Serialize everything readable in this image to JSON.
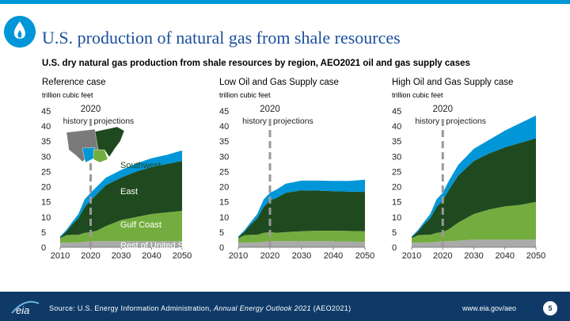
{
  "header": {
    "title": "U.S. production of natural gas from shale resources",
    "subtitle": "U.S. dry natural gas production from shale resources by region, AEO2021 oil and gas supply cases"
  },
  "footer": {
    "source_prefix": "Source: U.S. Energy Information Administration, ",
    "source_title": "Annual Energy Outlook 2021",
    "source_suffix": " (AEO2021)",
    "url": "www.eia.gov/aeo",
    "page_number": "5"
  },
  "colors": {
    "brand_blue": "#0096d7",
    "footer_navy": "#0f3a68",
    "title_blue": "#1b4f9c",
    "rest_of_us": "#aaaaaa",
    "gulf_coast": "#74ad3f",
    "east": "#1f4a1f",
    "southwest": "#0096d7"
  },
  "chart_data": [
    {
      "type": "area",
      "title": "Reference case",
      "unit": "trillion cubic feet",
      "x_ticks": [
        "2010",
        "2020",
        "2030",
        "2040",
        "2050"
      ],
      "y_ticks": [
        "0",
        "5",
        "10",
        "15",
        "20",
        "25",
        "30",
        "35",
        "40",
        "45"
      ],
      "xlim": [
        2010,
        2050
      ],
      "ylim": [
        0,
        45
      ],
      "annotation_year": "2020",
      "history_label": "history",
      "projections_label": "projections",
      "stacked": true,
      "x": [
        2010,
        2012,
        2014,
        2016,
        2018,
        2020,
        2022,
        2025,
        2030,
        2035,
        2040,
        2045,
        2050
      ],
      "series": [
        {
          "name": "Rest of United States",
          "values": [
            1.5,
            1.5,
            1.6,
            1.6,
            1.8,
            2.0,
            2.0,
            2.0,
            2.0,
            2.0,
            2.0,
            2.0,
            2.0
          ]
        },
        {
          "name": "Gulf Coast",
          "values": [
            1.5,
            2.5,
            2.5,
            2.5,
            3.0,
            3.0,
            3.5,
            5.0,
            7.0,
            8.0,
            9.0,
            9.5,
            10.0
          ]
        },
        {
          "name": "East",
          "values": [
            0.3,
            1.2,
            3.5,
            5.5,
            8.5,
            10.5,
            12.0,
            13.5,
            14.0,
            15.0,
            15.5,
            16.0,
            16.5
          ]
        },
        {
          "name": "Southwest",
          "values": [
            0.3,
            0.5,
            0.8,
            1.4,
            2.5,
            2.5,
            2.5,
            2.5,
            2.5,
            2.7,
            2.9,
            3.0,
            3.5
          ]
        }
      ]
    },
    {
      "type": "area",
      "title": "Low Oil and Gas Supply case",
      "unit": "trillion cubic feet",
      "x_ticks": [
        "2010",
        "2020",
        "2030",
        "2040",
        "2050"
      ],
      "y_ticks": [
        "0",
        "5",
        "10",
        "15",
        "20",
        "25",
        "30",
        "35",
        "40",
        "45"
      ],
      "xlim": [
        2010,
        2050
      ],
      "ylim": [
        0,
        45
      ],
      "annotation_year": "2020",
      "history_label": "history",
      "projections_label": "projections",
      "stacked": true,
      "x": [
        2010,
        2012,
        2014,
        2016,
        2018,
        2020,
        2022,
        2025,
        2030,
        2035,
        2040,
        2045,
        2050
      ],
      "series": [
        {
          "name": "Rest of United States",
          "values": [
            1.5,
            1.5,
            1.6,
            1.6,
            1.8,
            2.0,
            2.0,
            2.0,
            2.0,
            2.0,
            2.0,
            1.9,
            1.8
          ]
        },
        {
          "name": "Gulf Coast",
          "values": [
            1.5,
            2.5,
            2.5,
            2.5,
            3.0,
            3.0,
            2.8,
            3.0,
            3.3,
            3.5,
            3.5,
            3.5,
            3.5
          ]
        },
        {
          "name": "East",
          "values": [
            0.3,
            1.2,
            3.5,
            5.5,
            8.5,
            10.5,
            11.5,
            13.0,
            13.5,
            13.2,
            13.0,
            13.0,
            13.0
          ]
        },
        {
          "name": "Southwest",
          "values": [
            0.3,
            0.5,
            0.8,
            1.4,
            2.5,
            2.5,
            2.7,
            3.0,
            3.2,
            3.3,
            3.4,
            3.5,
            4.0
          ]
        }
      ]
    },
    {
      "type": "area",
      "title": "High Oil and Gas Supply case",
      "unit": "trillion cubic feet",
      "x_ticks": [
        "2010",
        "2020",
        "2030",
        "2040",
        "2050"
      ],
      "y_ticks": [
        "0",
        "5",
        "10",
        "15",
        "20",
        "25",
        "30",
        "35",
        "40",
        "45"
      ],
      "xlim": [
        2010,
        2050
      ],
      "ylim": [
        0,
        45
      ],
      "annotation_year": "2020",
      "history_label": "history",
      "projections_label": "projections",
      "stacked": true,
      "x": [
        2010,
        2012,
        2014,
        2016,
        2018,
        2020,
        2022,
        2025,
        2030,
        2035,
        2040,
        2045,
        2050
      ],
      "series": [
        {
          "name": "Rest of United States",
          "values": [
            1.5,
            1.5,
            1.6,
            1.6,
            1.8,
            2.0,
            2.0,
            2.2,
            2.5,
            2.5,
            2.5,
            2.5,
            2.5
          ]
        },
        {
          "name": "Gulf Coast",
          "values": [
            1.5,
            2.5,
            2.5,
            2.5,
            3.0,
            3.0,
            4.0,
            6.0,
            8.5,
            10.0,
            11.0,
            11.5,
            12.5
          ]
        },
        {
          "name": "East",
          "values": [
            0.3,
            1.2,
            3.5,
            5.5,
            8.5,
            10.5,
            13.0,
            15.5,
            17.5,
            18.5,
            19.5,
            20.5,
            21.0
          ]
        },
        {
          "name": "Southwest",
          "values": [
            0.3,
            0.5,
            0.8,
            1.4,
            2.5,
            2.5,
            3.0,
            3.5,
            4.0,
            4.5,
            5.5,
            6.5,
            7.5
          ]
        }
      ]
    }
  ],
  "inset_map": {
    "regions": [
      "West",
      "Southwest",
      "Gulf Coast",
      "East"
    ]
  }
}
